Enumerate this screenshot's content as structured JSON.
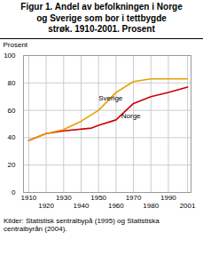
{
  "chart_data": {
    "type": "line",
    "title": "Figur 1. Andel av befolkningen i Norge\nog Sverige som bor i tettbygde\nstrøk. 1910-2001. Prosent",
    "ylabel": "Prosent",
    "source": "Kilder: Statistisk sentralbyрå (1995) og Statistiska\ncentralbyrån (2004).",
    "series": [
      {
        "name": "Norge",
        "color": "#cc0000",
        "x": [
          1910,
          1920,
          1930,
          1946,
          1950,
          1960,
          1970,
          1980,
          1990,
          2001
        ],
        "values": [
          38,
          43,
          45,
          47,
          49,
          53,
          65,
          70,
          73,
          77
        ]
      },
      {
        "name": "Sverige",
        "color": "#e8a000",
        "x": [
          1910,
          1920,
          1930,
          1940,
          1950,
          1960,
          1970,
          1980,
          1990,
          2001
        ],
        "values": [
          38,
          43,
          46,
          52,
          60,
          73,
          81,
          83,
          83,
          83
        ]
      }
    ],
    "annotations": [
      {
        "text": "Sverige",
        "x": 1950,
        "y": 67
      },
      {
        "text": "Norge",
        "x": 1963,
        "y": 54
      }
    ],
    "xlim": [
      1907,
      2003
    ],
    "xticks": [
      1910,
      1920,
      1930,
      1940,
      1950,
      1960,
      1970,
      1980,
      1990,
      2001
    ],
    "ylim": [
      0,
      100
    ],
    "yticks": [
      0,
      20,
      40,
      60,
      80,
      100
    ],
    "grid": true
  }
}
